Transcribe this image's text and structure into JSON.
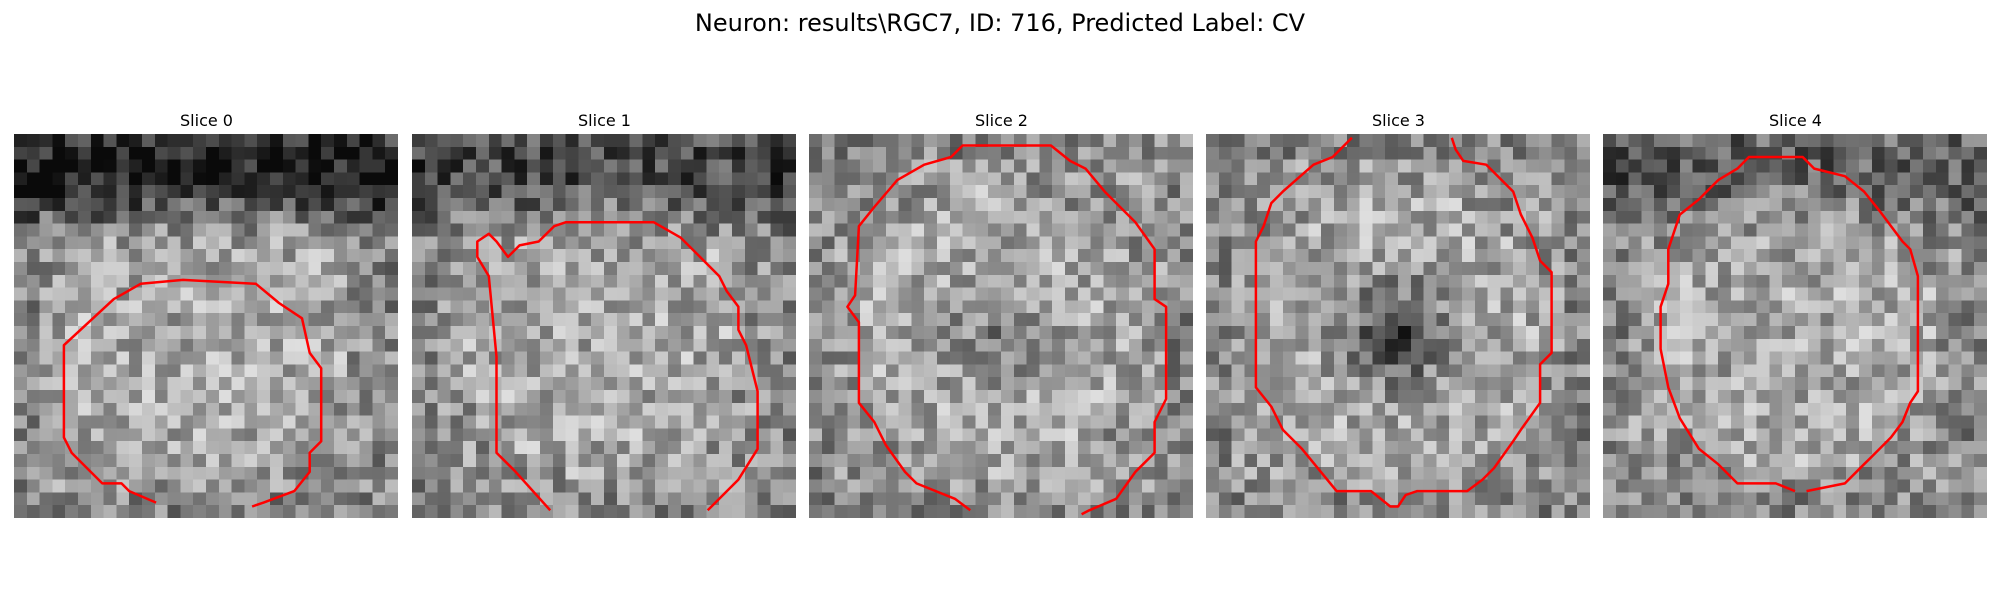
{
  "figure": {
    "title": "Neuron: results\\RGC7, ID: 716, Predicted Label: CV"
  },
  "panels": [
    {
      "title": "Slice 0",
      "seed": 11,
      "dark_band": 0.55,
      "center_blob": 0.0,
      "contour": [
        [
          0.37,
          0.96
        ],
        [
          0.3,
          0.93
        ],
        [
          0.28,
          0.91
        ],
        [
          0.23,
          0.91
        ],
        [
          0.18,
          0.86
        ],
        [
          0.15,
          0.83
        ],
        [
          0.13,
          0.79
        ],
        [
          0.13,
          0.55
        ],
        [
          0.26,
          0.43
        ],
        [
          0.33,
          0.39
        ],
        [
          0.44,
          0.38
        ],
        [
          0.63,
          0.39
        ],
        [
          0.69,
          0.44
        ],
        [
          0.75,
          0.48
        ],
        [
          0.77,
          0.57
        ],
        [
          0.8,
          0.61
        ],
        [
          0.8,
          0.8
        ],
        [
          0.77,
          0.83
        ],
        [
          0.77,
          0.88
        ],
        [
          0.73,
          0.93
        ],
        [
          0.65,
          0.96
        ],
        [
          0.62,
          0.97
        ]
      ]
    },
    {
      "title": "Slice 1",
      "seed": 23,
      "dark_band": 0.35,
      "center_blob": 0.0,
      "contour": [
        [
          0.36,
          0.98
        ],
        [
          0.27,
          0.88
        ],
        [
          0.22,
          0.83
        ],
        [
          0.22,
          0.58
        ],
        [
          0.2,
          0.37
        ],
        [
          0.17,
          0.32
        ],
        [
          0.17,
          0.28
        ],
        [
          0.2,
          0.26
        ],
        [
          0.22,
          0.28
        ],
        [
          0.25,
          0.32
        ],
        [
          0.28,
          0.29
        ],
        [
          0.33,
          0.28
        ],
        [
          0.37,
          0.24
        ],
        [
          0.4,
          0.23
        ],
        [
          0.63,
          0.23
        ],
        [
          0.7,
          0.27
        ],
        [
          0.8,
          0.37
        ],
        [
          0.82,
          0.41
        ],
        [
          0.85,
          0.45
        ],
        [
          0.85,
          0.51
        ],
        [
          0.87,
          0.55
        ],
        [
          0.9,
          0.67
        ],
        [
          0.9,
          0.82
        ],
        [
          0.85,
          0.9
        ],
        [
          0.77,
          0.98
        ]
      ]
    },
    {
      "title": "Slice 2",
      "seed": 37,
      "dark_band": 0.0,
      "center_blob": 0.35,
      "contour": [
        [
          0.42,
          0.98
        ],
        [
          0.38,
          0.95
        ],
        [
          0.28,
          0.91
        ],
        [
          0.25,
          0.88
        ],
        [
          0.2,
          0.81
        ],
        [
          0.17,
          0.75
        ],
        [
          0.13,
          0.7
        ],
        [
          0.13,
          0.49
        ],
        [
          0.1,
          0.45
        ],
        [
          0.12,
          0.42
        ],
        [
          0.13,
          0.24
        ],
        [
          0.17,
          0.19
        ],
        [
          0.23,
          0.12
        ],
        [
          0.3,
          0.08
        ],
        [
          0.37,
          0.06
        ],
        [
          0.4,
          0.03
        ],
        [
          0.63,
          0.03
        ],
        [
          0.68,
          0.07
        ],
        [
          0.72,
          0.09
        ],
        [
          0.77,
          0.15
        ],
        [
          0.85,
          0.23
        ],
        [
          0.9,
          0.3
        ],
        [
          0.9,
          0.43
        ],
        [
          0.93,
          0.45
        ],
        [
          0.93,
          0.69
        ],
        [
          0.9,
          0.75
        ],
        [
          0.9,
          0.83
        ],
        [
          0.85,
          0.88
        ],
        [
          0.8,
          0.95
        ],
        [
          0.73,
          0.98
        ],
        [
          0.71,
          0.99
        ]
      ]
    },
    {
      "title": "Slice 3",
      "seed": 53,
      "dark_band": 0.0,
      "center_blob": 0.85,
      "contour": [
        [
          0.38,
          0.01
        ],
        [
          0.33,
          0.06
        ],
        [
          0.28,
          0.08
        ],
        [
          0.2,
          0.15
        ],
        [
          0.17,
          0.18
        ],
        [
          0.15,
          0.24
        ],
        [
          0.13,
          0.28
        ],
        [
          0.13,
          0.66
        ],
        [
          0.17,
          0.71
        ],
        [
          0.2,
          0.77
        ],
        [
          0.25,
          0.82
        ],
        [
          0.34,
          0.93
        ],
        [
          0.43,
          0.93
        ],
        [
          0.48,
          0.97
        ],
        [
          0.5,
          0.97
        ],
        [
          0.52,
          0.94
        ],
        [
          0.55,
          0.93
        ],
        [
          0.68,
          0.93
        ],
        [
          0.72,
          0.9
        ],
        [
          0.75,
          0.87
        ],
        [
          0.8,
          0.8
        ],
        [
          0.82,
          0.77
        ],
        [
          0.87,
          0.7
        ],
        [
          0.87,
          0.6
        ],
        [
          0.9,
          0.57
        ],
        [
          0.9,
          0.36
        ],
        [
          0.87,
          0.33
        ],
        [
          0.85,
          0.27
        ],
        [
          0.82,
          0.21
        ],
        [
          0.8,
          0.15
        ],
        [
          0.73,
          0.08
        ],
        [
          0.67,
          0.07
        ],
        [
          0.65,
          0.04
        ],
        [
          0.64,
          0.01
        ]
      ]
    },
    {
      "title": "Slice 4",
      "seed": 71,
      "dark_band": 0.25,
      "center_blob": 0.0,
      "contour": [
        [
          0.5,
          0.93
        ],
        [
          0.45,
          0.91
        ],
        [
          0.35,
          0.91
        ],
        [
          0.3,
          0.86
        ],
        [
          0.25,
          0.82
        ],
        [
          0.2,
          0.74
        ],
        [
          0.17,
          0.66
        ],
        [
          0.15,
          0.56
        ],
        [
          0.15,
          0.45
        ],
        [
          0.17,
          0.39
        ],
        [
          0.17,
          0.3
        ],
        [
          0.2,
          0.21
        ],
        [
          0.25,
          0.17
        ],
        [
          0.28,
          0.14
        ],
        [
          0.3,
          0.12
        ],
        [
          0.35,
          0.09
        ],
        [
          0.38,
          0.06
        ],
        [
          0.52,
          0.06
        ],
        [
          0.55,
          0.09
        ],
        [
          0.63,
          0.11
        ],
        [
          0.68,
          0.15
        ],
        [
          0.72,
          0.2
        ],
        [
          0.78,
          0.28
        ],
        [
          0.8,
          0.3
        ],
        [
          0.82,
          0.37
        ],
        [
          0.82,
          0.67
        ],
        [
          0.8,
          0.7
        ],
        [
          0.78,
          0.75
        ],
        [
          0.75,
          0.79
        ],
        [
          0.7,
          0.84
        ],
        [
          0.68,
          0.86
        ],
        [
          0.63,
          0.91
        ],
        [
          0.53,
          0.93
        ]
      ]
    }
  ]
}
